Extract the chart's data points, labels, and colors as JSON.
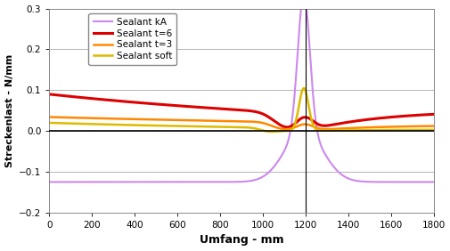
{
  "xlabel": "Umfang - mm",
  "ylabel": "Streckenlast - N/mm",
  "xlim": [
    0,
    1800
  ],
  "ylim": [
    -0.2,
    0.3
  ],
  "yticks": [
    -0.2,
    -0.1,
    0.0,
    0.1,
    0.2,
    0.3
  ],
  "xticks": [
    0,
    200,
    400,
    600,
    800,
    1000,
    1200,
    1400,
    1600,
    1800
  ],
  "vline_x": 1200,
  "series": [
    {
      "label": "Sealant t=6",
      "color": "#dd0000",
      "linewidth": 2.2
    },
    {
      "label": "Sealant t=3",
      "color": "#ff8800",
      "linewidth": 1.8
    },
    {
      "label": "Sealant soft",
      "color": "#ddbb00",
      "linewidth": 1.8
    },
    {
      "label": "Sealant kA",
      "color": "#cc88ee",
      "linewidth": 1.5
    }
  ],
  "background_color": "#ffffff",
  "grid_color": "#aaaaaa"
}
